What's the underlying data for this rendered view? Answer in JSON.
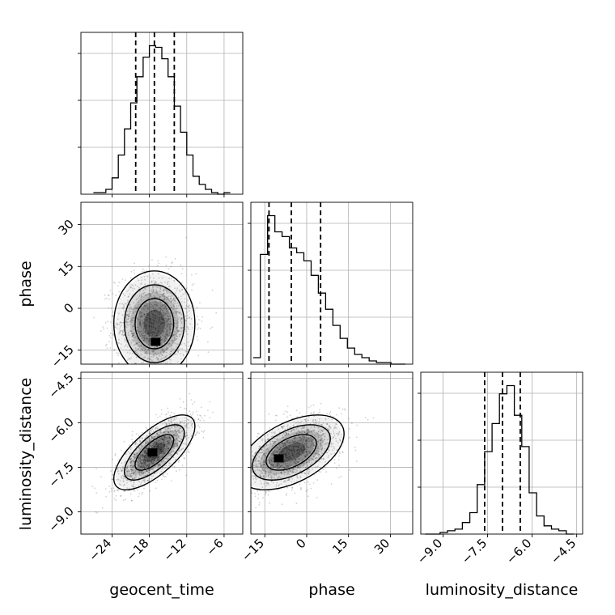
{
  "chart_data": {
    "type": "corner",
    "title": "",
    "parameters": [
      "geocent_time",
      "phase",
      "luminosity_distance"
    ],
    "axis_labels": {
      "geocent_time": "geocent_time",
      "phase": "phase",
      "luminosity_distance": "luminosity_distance"
    },
    "ranges": {
      "geocent_time": [
        -29,
        -3
      ],
      "phase": [
        -20,
        38
      ],
      "luminosity_distance": [
        -9.75,
        -4.3
      ]
    },
    "ticks": {
      "geocent_time": [
        -24,
        -18,
        -12,
        -6
      ],
      "phase": [
        -15,
        0,
        15,
        30
      ],
      "luminosity_distance": [
        -9.0,
        -7.5,
        -6.0,
        -4.5
      ]
    },
    "tick_labels": {
      "geocent_time": [
        "−24",
        "−18",
        "−12",
        "−6"
      ],
      "phase": [
        "−15",
        "0",
        "15",
        "30"
      ],
      "luminosity_distance": [
        "−9.0",
        "−7.5",
        "−6.0",
        "−4.5"
      ]
    },
    "grid": true,
    "quantiles": {
      "geocent_time": [
        -20.2,
        -17.2,
        -14.0
      ],
      "phase": [
        -13.5,
        -5.5,
        5.0
      ],
      "luminosity_distance": [
        -7.6,
        -7.0,
        -6.4
      ]
    },
    "histograms": {
      "geocent_time": {
        "bin_edges": [
          -27,
          -26,
          -25,
          -24,
          -23,
          -22,
          -21,
          -20,
          -19,
          -18,
          -17,
          -16,
          -15,
          -14,
          -13,
          -12,
          -11,
          -10,
          -9,
          -8,
          -7,
          -6,
          -5
        ],
        "counts": [
          1,
          1,
          3,
          10,
          24,
          40,
          56,
          72,
          84,
          91,
          90,
          83,
          72,
          54,
          38,
          24,
          11,
          6,
          3,
          1,
          0,
          1
        ]
      },
      "phase": {
        "bin_edges": [
          -19.2,
          -16.6,
          -14.0,
          -11.4,
          -8.8,
          -6.2,
          -3.6,
          -1.0,
          1.6,
          4.2,
          6.8,
          9.4,
          12.0,
          14.6,
          17.2,
          19.8,
          22.4,
          25.0,
          27.6,
          30.2,
          32.8,
          35.4
        ],
        "counts": [
          4,
          68,
          92,
          82,
          79,
          72,
          69,
          64,
          55,
          44,
          34,
          24,
          16,
          10,
          6,
          4,
          2,
          1,
          1,
          0,
          0
        ]
      },
      "luminosity_distance": {
        "bin_edges": [
          -9.6,
          -9.35,
          -9.1,
          -8.85,
          -8.6,
          -8.35,
          -8.1,
          -7.85,
          -7.6,
          -7.35,
          -7.1,
          -6.85,
          -6.6,
          -6.35,
          -6.1,
          -5.85,
          -5.6,
          -5.35,
          -5.1,
          -4.85,
          -4.6
        ],
        "counts": [
          0,
          0,
          1,
          2,
          3,
          7,
          13,
          30,
          50,
          67,
          85,
          90,
          72,
          53,
          25,
          11,
          5,
          3,
          2,
          0
        ]
      }
    },
    "joint": [
      {
        "x": "geocent_time",
        "y": "phase",
        "mean": [
          -17.2,
          -5.5
        ],
        "sd": [
          3.1,
          9.0
        ],
        "rho": 0.0,
        "mode": [
          -17.0,
          -12.0
        ]
      },
      {
        "x": "geocent_time",
        "y": "luminosity_distance",
        "mean": [
          -17.2,
          -7.0
        ],
        "sd": [
          3.1,
          0.6
        ],
        "rho": 0.7,
        "mode": [
          -17.5,
          -7.0
        ]
      },
      {
        "x": "phase",
        "y": "luminosity_distance",
        "mean": [
          -5.5,
          -7.0
        ],
        "sd": [
          9.0,
          0.6
        ],
        "rho": 0.5,
        "mode": [
          -10.0,
          -7.2
        ]
      }
    ]
  }
}
